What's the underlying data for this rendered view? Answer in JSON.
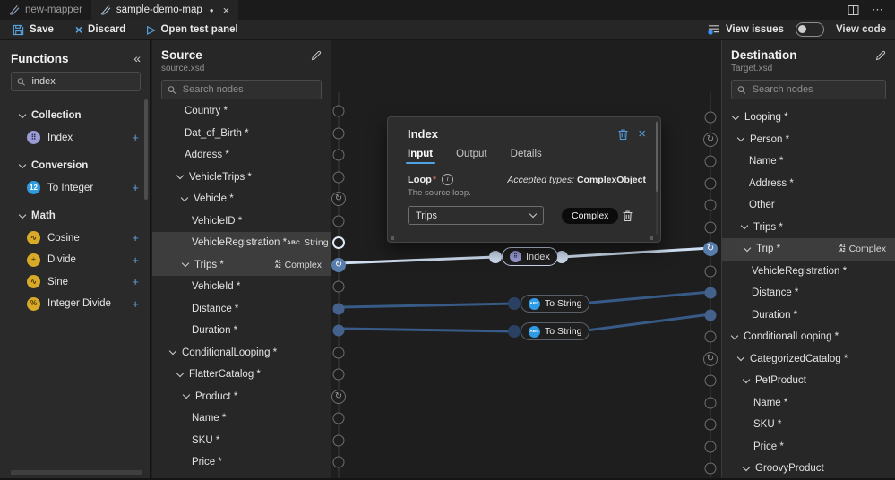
{
  "icons": {
    "close": "×",
    "dirty": "●",
    "more": "⋯",
    "collapse": "«",
    "play": "▷",
    "plus": "+",
    "loop": "↻",
    "discard": "×"
  },
  "colors": {
    "accent_blue": "#4fa3e5",
    "edge_selected": "#cfdff2",
    "edge_default": "#375a86",
    "connector_filled": "#44618c",
    "connector_loop_filled": "#587dab",
    "collection": "#9b9cd4",
    "conversion": "#2f9be0",
    "math": "#d9a928",
    "highlight_row": "#3d3d3d"
  },
  "tabs": {
    "inactive": {
      "label": "new-mapper"
    },
    "active": {
      "label": "sample-demo-map"
    }
  },
  "toolbar": {
    "save": "Save",
    "discard": "Discard",
    "open_test_panel": "Open test panel",
    "view_issues": "View issues",
    "view_code": "View code"
  },
  "functions_panel": {
    "title": "Functions",
    "search_value": "index",
    "groups": [
      {
        "label": "Collection",
        "items": [
          {
            "label": "Index",
            "color": "#9b9cd4",
            "glyph": "⠿",
            "glyph_color": "#2f2f55"
          }
        ]
      },
      {
        "label": "Conversion",
        "items": [
          {
            "label": "To Integer",
            "color": "#2f9be0",
            "glyph": "12",
            "glyph_color": "#ffffff"
          }
        ]
      },
      {
        "label": "Math",
        "items": [
          {
            "label": "Cosine",
            "color": "#d9a928",
            "glyph": "∿",
            "glyph_color": "#4d3a05"
          },
          {
            "label": "Divide",
            "color": "#d9a928",
            "glyph": "÷",
            "glyph_color": "#4d3a05"
          },
          {
            "label": "Sine",
            "color": "#d9a928",
            "glyph": "∿",
            "glyph_color": "#4d3a05"
          },
          {
            "label": "Integer Divide",
            "color": "#d9a928",
            "glyph": "%",
            "glyph_color": "#4d3a05"
          }
        ]
      }
    ]
  },
  "badges": {
    "string_icon": "ABC",
    "complex_icon_top": "A1",
    "complex_icon_bottom": "A2"
  },
  "source_panel": {
    "title": "Source",
    "file": "source.xsd",
    "search_placeholder": "Search nodes",
    "nodes": [
      {
        "label": "Country *",
        "indent": 36,
        "connector": "hollow"
      },
      {
        "label": "Dat_of_Birth *",
        "indent": 36,
        "connector": "hollow"
      },
      {
        "label": "Address *",
        "indent": 36,
        "connector": "hollow"
      },
      {
        "label": "VehicleTrips *",
        "indent": 28,
        "chevron": true,
        "connector": "hollow"
      },
      {
        "label": "Vehicle *",
        "indent": 33,
        "chevron": true,
        "connector": "loop"
      },
      {
        "label": "VehicleID *",
        "indent": 44,
        "connector": "hollow"
      },
      {
        "label": "VehicleRegistration *",
        "indent": 44,
        "connector": "ring",
        "badge": "String",
        "highlight": true
      },
      {
        "label": "Trips *",
        "indent": 34,
        "chevron": true,
        "connector": "loopfill",
        "badge": "Complex",
        "highlight": true
      },
      {
        "label": "VehicleId *",
        "indent": 44,
        "connector": "hollow"
      },
      {
        "label": "Distance *",
        "indent": 44,
        "connector": "fill"
      },
      {
        "label": "Duration *",
        "indent": 44,
        "connector": "fill"
      },
      {
        "label": "ConditionalLooping *",
        "indent": 20,
        "chevron": true,
        "connector": "hollow"
      },
      {
        "label": "FlatterCatalog *",
        "indent": 28,
        "chevron": true,
        "connector": "hollow"
      },
      {
        "label": "Product *",
        "indent": 35,
        "chevron": true,
        "connector": "loop"
      },
      {
        "label": "Name *",
        "indent": 44,
        "connector": "hollow"
      },
      {
        "label": "SKU *",
        "indent": 44,
        "connector": "hollow"
      },
      {
        "label": "Price *",
        "indent": 44,
        "connector": "hollow"
      }
    ]
  },
  "destination_panel": {
    "title": "Destination",
    "file": "Target.xsd",
    "search_placeholder": "Search nodes",
    "nodes": [
      {
        "label": "Looping *",
        "indent": 12,
        "chevron": true,
        "connector": "hollow"
      },
      {
        "label": "Person *",
        "indent": 18,
        "chevron": true,
        "connector": "loop"
      },
      {
        "label": "Name *",
        "indent": 30,
        "connector": "hollow"
      },
      {
        "label": "Address *",
        "indent": 30,
        "connector": "hollow"
      },
      {
        "label": "Other",
        "indent": 30,
        "connector": "hollow"
      },
      {
        "label": "Trips *",
        "indent": 22,
        "chevron": true,
        "connector": "hollow"
      },
      {
        "label": "Trip *",
        "indent": 25,
        "chevron": true,
        "connector": "loopfill",
        "badge": "Complex",
        "highlight": true
      },
      {
        "label": "VehicleRegistration *",
        "indent": 33,
        "connector": "hollow"
      },
      {
        "label": "Distance *",
        "indent": 33,
        "connector": "fill"
      },
      {
        "label": "Duration *",
        "indent": 33,
        "connector": "fill"
      },
      {
        "label": "ConditionalLooping *",
        "indent": 11,
        "chevron": true,
        "connector": "hollow"
      },
      {
        "label": "CategorizedCatalog *",
        "indent": 18,
        "chevron": true,
        "connector": "loop"
      },
      {
        "label": "PetProduct",
        "indent": 24,
        "chevron": true,
        "connector": "hollow"
      },
      {
        "label": "Name *",
        "indent": 35,
        "connector": "hollow"
      },
      {
        "label": "SKU *",
        "indent": 35,
        "connector": "hollow"
      },
      {
        "label": "Price *",
        "indent": 35,
        "connector": "hollow"
      },
      {
        "label": "GroovyProduct",
        "indent": 24,
        "chevron": true,
        "connector": "hollow"
      }
    ]
  },
  "canvas": {
    "nodes": [
      {
        "label": "Index"
      },
      {
        "label": "To String"
      },
      {
        "label": "To String"
      }
    ]
  },
  "popup": {
    "title": "Index",
    "tabs": [
      "Input",
      "Output",
      "Details"
    ],
    "active_tab": "Input",
    "loop_label": "Loop",
    "required_marker": "*",
    "accepted_types_label": "Accepted types:",
    "accepted_types_value": "ComplexObject",
    "loop_description": "The source loop.",
    "loop_value": "Trips",
    "type_badge": "Complex"
  }
}
